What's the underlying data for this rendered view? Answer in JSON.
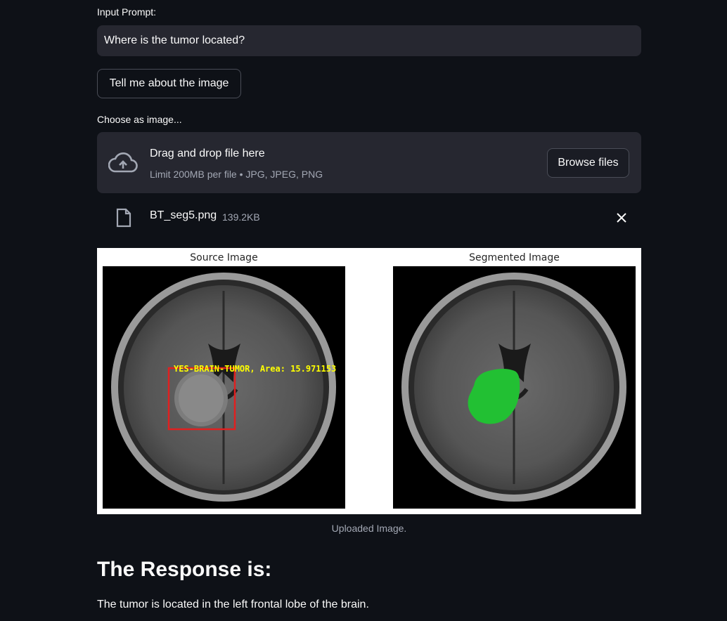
{
  "prompt": {
    "label": "Input Prompt:",
    "value": "Where is the tumor located?"
  },
  "describe_button": "Tell me about the image",
  "uploader": {
    "label": "Choose as image...",
    "drop_text": "Drag and drop file here",
    "limit_text": "Limit 200MB per file • JPG, JPEG, PNG",
    "browse_label": "Browse files"
  },
  "file": {
    "name": "BT_seg5.png",
    "size": "139.2KB"
  },
  "figure": {
    "left_title": "Source Image",
    "right_title": "Segmented Image",
    "detection_label": "YES-BRAIN-TUMOR, Area: 15.971153",
    "box_color": "#e02020",
    "label_color": "#ffff00",
    "segment_color": "#22c033"
  },
  "caption": "Uploaded Image.",
  "response": {
    "heading": "The Response is:",
    "text": "The tumor is located in the left frontal lobe of the brain."
  }
}
